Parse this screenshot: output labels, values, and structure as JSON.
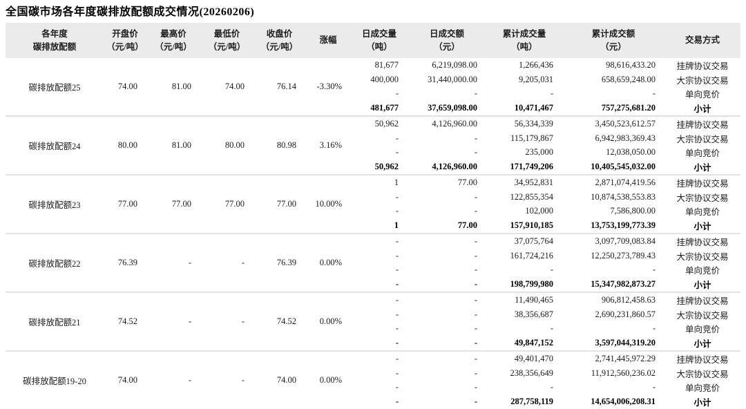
{
  "title": "全国碳市场各年度碳排放配额成交情况(20260206)",
  "table": {
    "headers": [
      {
        "line1": "各年度",
        "line2": "碳排放配额"
      },
      {
        "line1": "开盘价",
        "line2": "（元/吨）"
      },
      {
        "line1": "最高价",
        "line2": "（元/吨）"
      },
      {
        "line1": "最低价",
        "line2": "（元/吨）"
      },
      {
        "line1": "收盘价",
        "line2": "（元/吨）"
      },
      {
        "line1": "涨幅",
        "line2": ""
      },
      {
        "line1": "日成交量",
        "line2": "（吨）"
      },
      {
        "line1": "日成交额",
        "line2": "（元）"
      },
      {
        "line1": "累计成交量",
        "line2": "（吨）"
      },
      {
        "line1": "累计成交额",
        "line2": "（元）"
      },
      {
        "line1": "交易方式",
        "line2": ""
      }
    ],
    "blocks": [
      {
        "name": "碳排放配额25",
        "open": "74.00",
        "high": "81.00",
        "low": "74.00",
        "close": "76.14",
        "change": "-3.30%",
        "rows": [
          {
            "daily_volume": "81,677",
            "daily_amount": "6,219,098.00",
            "cum_volume": "1,266,436",
            "cum_amount": "98,616,433.20",
            "method": "挂牌协议交易"
          },
          {
            "daily_volume": "400,000",
            "daily_amount": "31,440,000.00",
            "cum_volume": "9,205,031",
            "cum_amount": "658,659,248.00",
            "method": "大宗协议交易"
          },
          {
            "daily_volume": "-",
            "daily_amount": "-",
            "cum_volume": "-",
            "cum_amount": "-",
            "method": "单向竞价"
          },
          {
            "daily_volume": "481,677",
            "daily_amount": "37,659,098.00",
            "cum_volume": "10,471,467",
            "cum_amount": "757,275,681.20",
            "method": "小计"
          }
        ]
      },
      {
        "name": "碳排放配额24",
        "open": "80.00",
        "high": "81.00",
        "low": "80.00",
        "close": "80.98",
        "change": "3.16%",
        "rows": [
          {
            "daily_volume": "50,962",
            "daily_amount": "4,126,960.00",
            "cum_volume": "56,334,339",
            "cum_amount": "3,450,523,612.57",
            "method": "挂牌协议交易"
          },
          {
            "daily_volume": "-",
            "daily_amount": "-",
            "cum_volume": "115,179,867",
            "cum_amount": "6,942,983,369.43",
            "method": "大宗协议交易"
          },
          {
            "daily_volume": "-",
            "daily_amount": "-",
            "cum_volume": "235,000",
            "cum_amount": "12,038,050.00",
            "method": "单向竞价"
          },
          {
            "daily_volume": "50,962",
            "daily_amount": "4,126,960.00",
            "cum_volume": "171,749,206",
            "cum_amount": "10,405,545,032.00",
            "method": "小计"
          }
        ]
      },
      {
        "name": "碳排放配额23",
        "open": "77.00",
        "high": "77.00",
        "low": "77.00",
        "close": "77.00",
        "change": "10.00%",
        "rows": [
          {
            "daily_volume": "1",
            "daily_amount": "77.00",
            "cum_volume": "34,952,831",
            "cum_amount": "2,871,074,419.56",
            "method": "挂牌协议交易"
          },
          {
            "daily_volume": "-",
            "daily_amount": "-",
            "cum_volume": "122,855,354",
            "cum_amount": "10,874,538,553.83",
            "method": "大宗协议交易"
          },
          {
            "daily_volume": "-",
            "daily_amount": "-",
            "cum_volume": "102,000",
            "cum_amount": "7,586,800.00",
            "method": "单向竞价"
          },
          {
            "daily_volume": "1",
            "daily_amount": "77.00",
            "cum_volume": "157,910,185",
            "cum_amount": "13,753,199,773.39",
            "method": "小计"
          }
        ]
      },
      {
        "name": "碳排放配额22",
        "open": "76.39",
        "high": "-",
        "low": "-",
        "close": "76.39",
        "change": "0.00%",
        "rows": [
          {
            "daily_volume": "-",
            "daily_amount": "-",
            "cum_volume": "37,075,764",
            "cum_amount": "3,097,709,083.84",
            "method": "挂牌协议交易"
          },
          {
            "daily_volume": "-",
            "daily_amount": "-",
            "cum_volume": "161,724,216",
            "cum_amount": "12,250,273,789.43",
            "method": "大宗协议交易"
          },
          {
            "daily_volume": "-",
            "daily_amount": "-",
            "cum_volume": "-",
            "cum_amount": "-",
            "method": "单向竞价"
          },
          {
            "daily_volume": "-",
            "daily_amount": "-",
            "cum_volume": "198,799,980",
            "cum_amount": "15,347,982,873.27",
            "method": "小计"
          }
        ]
      },
      {
        "name": "碳排放配额21",
        "open": "74.52",
        "high": "-",
        "low": "-",
        "close": "74.52",
        "change": "0.00%",
        "rows": [
          {
            "daily_volume": "-",
            "daily_amount": "-",
            "cum_volume": "11,490,465",
            "cum_amount": "906,812,458.63",
            "method": "挂牌协议交易"
          },
          {
            "daily_volume": "-",
            "daily_amount": "-",
            "cum_volume": "38,356,687",
            "cum_amount": "2,690,231,860.57",
            "method": "大宗协议交易"
          },
          {
            "daily_volume": "-",
            "daily_amount": "-",
            "cum_volume": "-",
            "cum_amount": "-",
            "method": "单向竞价"
          },
          {
            "daily_volume": "-",
            "daily_amount": "-",
            "cum_volume": "49,847,152",
            "cum_amount": "3,597,044,319.20",
            "method": "小计"
          }
        ]
      },
      {
        "name": "碳排放配额19-20",
        "open": "74.00",
        "high": "-",
        "low": "-",
        "close": "74.00",
        "change": "0.00%",
        "rows": [
          {
            "daily_volume": "-",
            "daily_amount": "-",
            "cum_volume": "49,401,470",
            "cum_amount": "2,741,445,972.29",
            "method": "挂牌协议交易"
          },
          {
            "daily_volume": "-",
            "daily_amount": "-",
            "cum_volume": "238,356,649",
            "cum_amount": "11,912,560,236.02",
            "method": "大宗协议交易"
          },
          {
            "daily_volume": "-",
            "daily_amount": "-",
            "cum_volume": "-",
            "cum_amount": "-",
            "method": "单向竞价"
          },
          {
            "daily_volume": "-",
            "daily_amount": "-",
            "cum_volume": "287,758,119",
            "cum_amount": "14,654,006,208.31",
            "method": "小计"
          }
        ]
      }
    ]
  }
}
